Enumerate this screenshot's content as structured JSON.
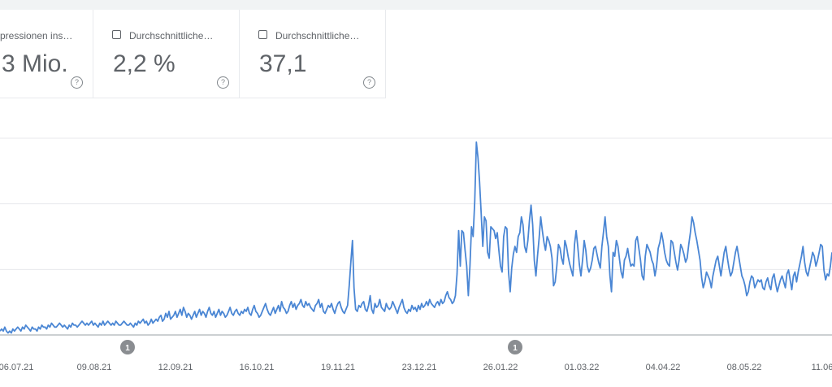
{
  "metric_cards": [
    {
      "label": "pressionen ins…",
      "value": "3 Mio.",
      "help": "?"
    },
    {
      "label": "Durchschnittliche…",
      "value": "2,2 %",
      "help": "?"
    },
    {
      "label": "Durchschnittliche…",
      "value": "37,1",
      "help": "?"
    }
  ],
  "chart_data": {
    "type": "line",
    "title": "",
    "xlabel": "",
    "ylabel": "",
    "grid": true,
    "x_ticks": [
      "06.07.21",
      "09.08.21",
      "12.09.21",
      "16.10.21",
      "19.11.21",
      "23.12.21",
      "26.01.22",
      "01.03.22",
      "04.04.22",
      "08.05.22",
      "11.06"
    ],
    "annotations": [
      {
        "label": "1",
        "date": "05.08.21"
      },
      {
        "label": "1",
        "date": "26.01.22"
      }
    ],
    "ylim": [
      0,
      100
    ],
    "series": [
      {
        "color": "#4a86d4",
        "values": [
          2,
          3,
          2,
          4,
          2,
          1,
          2,
          1,
          3,
          2,
          3,
          4,
          3,
          2,
          4,
          3,
          5,
          4,
          3,
          2,
          4,
          3,
          3,
          2,
          4,
          3,
          5,
          4,
          4,
          3,
          5,
          4,
          6,
          5,
          4,
          4,
          5,
          6,
          5,
          4,
          5,
          4,
          3,
          5,
          4,
          6,
          5,
          5,
          4,
          5,
          6,
          7,
          6,
          5,
          6,
          5,
          6,
          7,
          5,
          6,
          5,
          4,
          6,
          5,
          7,
          5,
          6,
          7,
          6,
          5,
          6,
          5,
          7,
          6,
          5,
          5,
          6,
          7,
          6,
          5,
          5,
          6,
          5,
          4,
          6,
          5,
          7,
          6,
          7,
          8,
          6,
          7,
          5,
          6,
          8,
          6,
          7,
          8,
          7,
          9,
          10,
          7,
          8,
          11,
          9,
          12,
          8,
          9,
          10,
          12,
          9,
          11,
          13,
          10,
          14,
          12,
          9,
          11,
          10,
          8,
          10,
          12,
          9,
          11,
          13,
          10,
          12,
          11,
          9,
          12,
          14,
          11,
          10,
          12,
          9,
          11,
          13,
          10,
          12,
          11,
          9,
          10,
          12,
          14,
          11,
          10,
          12,
          13,
          11,
          10,
          12,
          11,
          13,
          12,
          14,
          11,
          10,
          13,
          15,
          12,
          11,
          9,
          10,
          12,
          14,
          16,
          13,
          11,
          10,
          12,
          14,
          11,
          13,
          15,
          12,
          17,
          14,
          13,
          11,
          12,
          15,
          17,
          14,
          16,
          13,
          15,
          16,
          18,
          15,
          14,
          17,
          15,
          16,
          14,
          13,
          12,
          15,
          16,
          18,
          14,
          16,
          12,
          11,
          13,
          15,
          14,
          16,
          13,
          11,
          14,
          16,
          17,
          14,
          12,
          11,
          13,
          15,
          25,
          37,
          48,
          24,
          13,
          12,
          15,
          14,
          16,
          17,
          13,
          12,
          15,
          20,
          13,
          11,
          16,
          14,
          15,
          18,
          14,
          13,
          12,
          16,
          14,
          13,
          14,
          17,
          15,
          13,
          11,
          14,
          16,
          18,
          14,
          12,
          11,
          13,
          12,
          15,
          13,
          14,
          12,
          15,
          13,
          16,
          14,
          15,
          17,
          15,
          18,
          16,
          15,
          14,
          16,
          17,
          15,
          18,
          16,
          17,
          20,
          22,
          19,
          18,
          16,
          17,
          20,
          31,
          53,
          35,
          53,
          52,
          43,
          35,
          20,
          35,
          55,
          50,
          68,
          98,
          90,
          78,
          62,
          45,
          60,
          58,
          42,
          39,
          55,
          54,
          53,
          49,
          52,
          43,
          35,
          32,
          50,
          55,
          54,
          32,
          22,
          34,
          41,
          45,
          42,
          50,
          52,
          60,
          56,
          45,
          42,
          48,
          58,
          66,
          56,
          38,
          30,
          40,
          49,
          60,
          53,
          47,
          43,
          50,
          48,
          45,
          39,
          25,
          27,
          35,
          46,
          44,
          39,
          36,
          48,
          45,
          40,
          36,
          33,
          30,
          46,
          53,
          45,
          36,
          30,
          38,
          48,
          43,
          35,
          32,
          34,
          38,
          44,
          45,
          41,
          37,
          34,
          45,
          52,
          60,
          50,
          45,
          30,
          22,
          42,
          40,
          48,
          45,
          38,
          32,
          29,
          38,
          40,
          44,
          39,
          35,
          36,
          35,
          48,
          50,
          44,
          38,
          30,
          28,
          40,
          46,
          44,
          42,
          38,
          36,
          30,
          35,
          44,
          47,
          52,
          48,
          42,
          38,
          36,
          35,
          48,
          47,
          42,
          37,
          33,
          38,
          46,
          44,
          41,
          37,
          39,
          46,
          52,
          60,
          57,
          52,
          48,
          43,
          38,
          29,
          24,
          27,
          32,
          30,
          28,
          24,
          30,
          34,
          38,
          40,
          35,
          30,
          36,
          42,
          45,
          39,
          34,
          30,
          32,
          37,
          42,
          45,
          40,
          35,
          30,
          28,
          25,
          20,
          22,
          27,
          30,
          29,
          24,
          26,
          28,
          27,
          28,
          24,
          23,
          27,
          29,
          25,
          23,
          29,
          31,
          26,
          22,
          25,
          28,
          30,
          27,
          24,
          31,
          33,
          28,
          23,
          30,
          32,
          27,
          32,
          36,
          40,
          45,
          37,
          32,
          30,
          34,
          38,
          42,
          40,
          35,
          38,
          42,
          46,
          45,
          33,
          28,
          31,
          30,
          35,
          42
        ]
      }
    ]
  }
}
